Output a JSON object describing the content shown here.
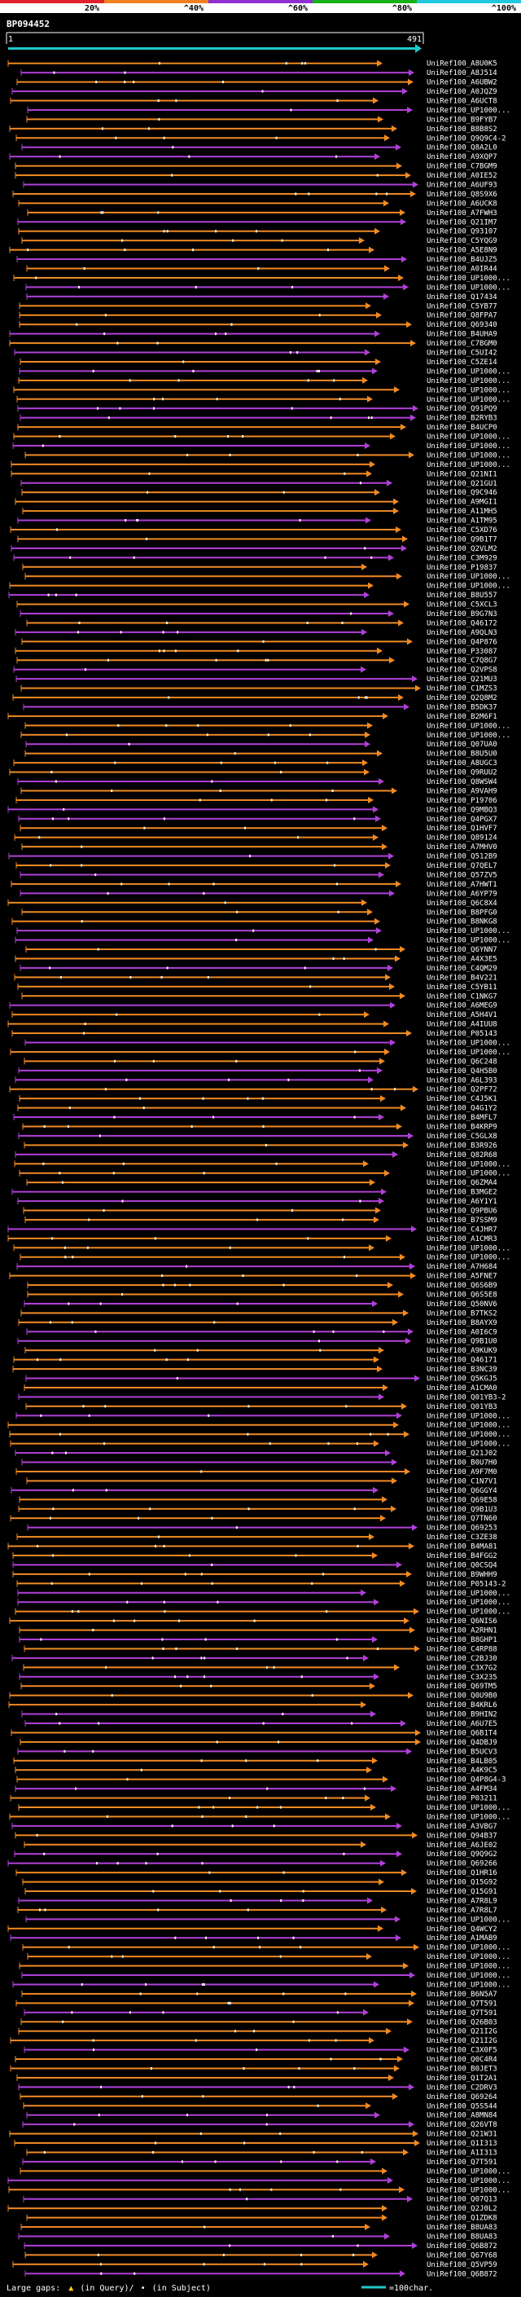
{
  "scale_labels": [
    "20%",
    "^40%",
    "^60%",
    "^80%",
    "^100%"
  ],
  "scale_colors": [
    "#e0202a",
    "#f08020",
    "#9030d0",
    "#18b018",
    "#20c8e0"
  ],
  "query_id": "BP094452",
  "query_start": "1",
  "query_end": "491",
  "query_color": "#20c8c8",
  "hit_colors": {
    "orange": "#f08a24",
    "purple": "#b040d8",
    "gap": "#ffffff"
  },
  "hits": [
    "UniRef100_A8U0K5",
    "UniRef100_A8J514",
    "UniRef100_A6UBW2",
    "UniRef100_A0JQZ9",
    "UniRef100_A6UCT8",
    "UniRef100_UP1000...",
    "UniRef100_B9FYB7",
    "UniRef100_B8B8S2",
    "UniRef100_Q9Q9C4-2",
    "UniRef100_Q8A2L0",
    "UniRef100_A9XQP7",
    "UniRef100_C7BGM9",
    "UniRef100_A0IE52",
    "UniRef100_A6UF93",
    "UniRef100_Q8S9X6",
    "UniRef100_A6UCK8",
    "UniRef100_A7FWH3",
    "UniRef100_Q21IM7",
    "UniRef100_Q93107",
    "UniRef100_C5YQG9",
    "UniRef100_A5E8N9",
    "UniRef100_B4UJZ5",
    "UniRef100_A0IR44",
    "UniRef100_UP1000...",
    "UniRef100_UP1000...",
    "UniRef100_Q17434",
    "UniRef100_C5YB77",
    "UniRef100_Q8FPA7",
    "UniRef100_Q69340",
    "UniRef100_B4UHA9",
    "UniRef100_C7BGM0",
    "UniRef100_C5UI42",
    "UniRef100_C5ZE14",
    "UniRef100_UP1000...",
    "UniRef100_UP1000...",
    "UniRef100_UP1000...",
    "UniRef100_UP1000...",
    "UniRef100_Q91PQ9",
    "UniRef100_B2RYB3",
    "UniRef100_B4UCP0",
    "UniRef100_UP1000...",
    "UniRef100_UP1000...",
    "UniRef100_UP1000...",
    "UniRef100_UP1000...",
    "UniRef100_Q21NI1",
    "UniRef100_Q21GU1",
    "UniRef100_Q9C946",
    "UniRef100_A9MGI1",
    "UniRef100_A11MH5",
    "UniRef100_A1TM95",
    "UniRef100_C5XD76",
    "UniRef100_Q9B1T7",
    "UniRef100_Q2VLM2",
    "UniRef100_C3M929",
    "UniRef100_P19837",
    "UniRef100_UP1000...",
    "UniRef100_UP1000...",
    "UniRef100_B8U557",
    "UniRef100_C5XCL3",
    "UniRef100_B9G7N3",
    "UniRef100_Q46172",
    "UniRef100_A9QLN3",
    "UniRef100_Q4P876",
    "UniRef100_P33087",
    "UniRef100_C7Q8G7",
    "UniRef100_Q2VPS8",
    "UniRef100_Q21MU3",
    "UniRef100_C1MZS3",
    "UniRef100_Q2Q8M2",
    "UniRef100_B5DK37",
    "UniRef100_B2M6F1",
    "UniRef100_UP1000...",
    "UniRef100_UP1000...",
    "UniRef100_Q07UA0",
    "UniRef100_B8U5U0",
    "UniRef100_A8UGC3",
    "UniRef100_Q9RUU2",
    "UniRef100_Q8WSW4",
    "UniRef100_A9VAH9",
    "UniRef100_P19706",
    "UniRef100_Q9MBQ3",
    "UniRef100_Q4PGX7",
    "UniRef100_Q1HVF7",
    "UniRef100_Q89124",
    "UniRef100_A7MHV0",
    "UniRef100_Q512B9",
    "UniRef100_Q7QEL7",
    "UniRef100_Q57ZV5",
    "UniRef100_A7HWT1",
    "UniRef100_A6YP79",
    "UniRef100_Q6C8X4",
    "UniRef100_B8PFG0",
    "UniRef100_B8NKG8",
    "UniRef100_UP1000...",
    "UniRef100_UP1000...",
    "UniRef100_Q6YNN7",
    "UniRef100_A4X3E5",
    "UniRef100_C4QM29",
    "UniRef100_B4V221",
    "UniRef100_C5YB11",
    "UniRef100_C1NKG7",
    "UniRef100_A6MEG9",
    "UniRef100_A5H4V1",
    "UniRef100_A4IUU8",
    "UniRef100_P05143",
    "UniRef100_UP1000...",
    "UniRef100_UP1000...",
    "UniRef100_Q6C248",
    "UniRef100_Q4H5B0",
    "UniRef100_A6L393",
    "UniRef100_Q2PF72",
    "UniRef100_C4J5K1",
    "UniRef100_Q4G1Y2",
    "UniRef100_B4MFL7",
    "UniRef100_B4KRP9",
    "UniRef100_C5GLX8",
    "UniRef100_B3R926",
    "UniRef100_Q82R68",
    "UniRef100_UP1000...",
    "UniRef100_UP1000...",
    "UniRef100_Q6ZMA4",
    "UniRef100_B3MGE2",
    "UniRef100_A6Y1Y1",
    "UniRef100_Q9PBU6",
    "UniRef100_B7SSM9",
    "UniRef100_C4JHR7",
    "UniRef100_A1CMR3",
    "UniRef100_UP1000...",
    "UniRef100_UP1000...",
    "UniRef100_A7H684",
    "UniRef100_A5FNE7",
    "UniRef100_Q6S6B9",
    "UniRef100_Q6S5E8",
    "UniRef100_Q50NV6",
    "UniRef100_B7TKS2",
    "UniRef100_B8AYX9",
    "UniRef100_A0I6C9",
    "UniRef100_Q9B1U0",
    "UniRef100_A9KUK9",
    "UniRef100_Q46171",
    "UniRef100_B3NC39",
    "UniRef100_Q5KGJ5",
    "UniRef100_A1CMA0",
    "UniRef100_Q01YB3-2",
    "UniRef100_Q01YB3",
    "UniRef100_UP1000...",
    "UniRef100_UP1000...",
    "UniRef100_UP1000...",
    "UniRef100_UP1000...",
    "UniRef100_Q21J02",
    "UniRef100_B0U7H0",
    "UniRef100_A9F7M0",
    "UniRef100_C1N7V1",
    "UniRef100_Q6GGY4",
    "UniRef100_Q69E58",
    "UniRef100_Q9B1U3",
    "UniRef100_Q7TN60",
    "UniRef100_Q69253",
    "UniRef100_C3ZE38",
    "UniRef100_B4MA81",
    "UniRef100_B4FGG2",
    "UniRef100_Q0CSQ4",
    "UniRef100_B9WHH9",
    "UniRef100_P05143-2",
    "UniRef100_UP1000...",
    "UniRef100_UP1000...",
    "UniRef100_UP1000...",
    "UniRef100_Q6NIS6",
    "UniRef100_A2RHN1",
    "UniRef100_B8GHP1",
    "UniRef100_C4RP88",
    "UniRef100_C2BJ30",
    "UniRef100_C3X7G2",
    "UniRef100_C3X235",
    "UniRef100_Q69TM5",
    "UniRef100_Q0U9B0",
    "UniRef100_B4KRL6",
    "UniRef100_B9HIN2",
    "UniRef100_A6U7E5",
    "UniRef100_Q6B1T4",
    "UniRef100_Q4DBJ9",
    "UniRef100_B5UCV3",
    "UniRef100_B4LB05",
    "UniRef100_A4K9C5",
    "UniRef100_Q4P8G4-3",
    "UniRef100_A4FM34",
    "UniRef100_P03211",
    "UniRef100_UP1000...",
    "UniRef100_UP1000...",
    "UniRef100_A3VBG7",
    "UniRef100_Q94B37",
    "UniRef100_A6JE02",
    "UniRef100_Q9Q9G2",
    "UniRef100_Q69266",
    "UniRef100_Q1HR16",
    "UniRef100_Q15G92",
    "UniRef100_Q15G91",
    "UniRef100_A7R8L9",
    "UniRef100_A7R8L7",
    "UniRef100_UP1000...",
    "UniRef100_Q4WCY2",
    "UniRef100_A1MAB9",
    "UniRef100_UP1000...",
    "UniRef100_UP1000...",
    "UniRef100_UP1000...",
    "UniRef100_UP1000...",
    "UniRef100_UP1000...",
    "UniRef100_B6N5A7",
    "UniRef100_Q7T591",
    "UniRef100_Q7T591",
    "UniRef100_Q26B03",
    "UniRef100_Q21I2G",
    "UniRef100_Q21I2G",
    "UniRef100_C3X0F5",
    "UniRef100_Q0C4R4",
    "UniRef100_B0JET3",
    "UniRef100_Q1T2A1",
    "UniRef100_C2DRV3",
    "UniRef100_Q69264",
    "UniRef100_Q5S544",
    "UniRef100_A8MN84",
    "UniRef100_Q26VT8",
    "UniRef100_Q21W31",
    "UniRef100_Q1I313",
    "UniRef100_A1I313",
    "UniRef100_Q7T591",
    "UniRef100_UP1000...",
    "UniRef100_UP1000...",
    "UniRef100_UP1000...",
    "UniRef100_Q07Q13",
    "UniRef100_Q2J0L2",
    "UniRef100_Q1ZDK8",
    "UniRef100_B8UA83",
    "UniRef100_B8UA83",
    "UniRef100_Q6B872",
    "UniRef100_Q67Y68",
    "UniRef100_Q5VP59",
    "UniRef100_Q6B872"
  ],
  "legend": {
    "gaps_label": "Large gaps:",
    "query_gap": "(in Query)/",
    "subject_gap": "(in Subject)",
    "scale_unit": "=100char."
  }
}
